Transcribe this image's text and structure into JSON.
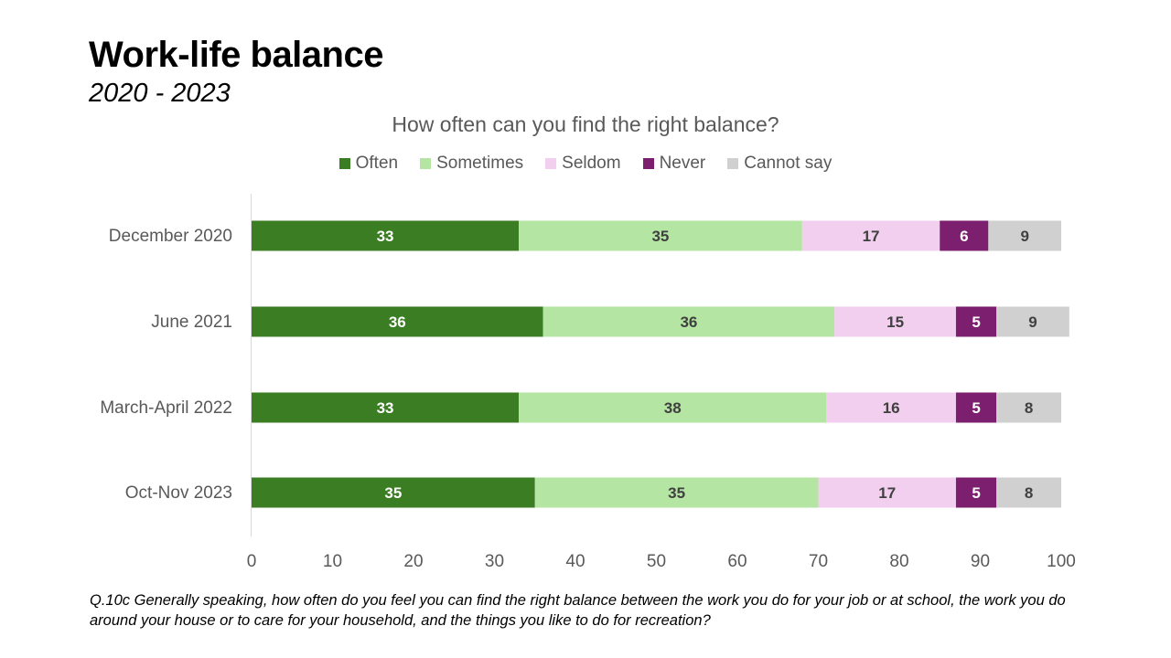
{
  "header": {
    "title": "Work-life balance",
    "subtitle": "2020 - 2023"
  },
  "footnote": "Q.10c Generally speaking, how often do you feel you can find the right balance between the work you do for your job or at school, the work you do around your house or to care for your household, and the things you like to do for recreation?",
  "chart_data": {
    "type": "bar",
    "orientation": "horizontal",
    "stacked": true,
    "title": "How often can you find the right balance?",
    "categories": [
      "December 2020",
      "June 2021",
      "March-April 2022",
      "Oct-Nov 2023"
    ],
    "series": [
      {
        "name": "Often",
        "color": "#3a7d22",
        "label_color": "#ffffff",
        "values": [
          33,
          36,
          33,
          35
        ]
      },
      {
        "name": "Sometimes",
        "color": "#b4e5a2",
        "label_color": "#404040",
        "values": [
          35,
          36,
          38,
          35
        ]
      },
      {
        "name": "Seldom",
        "color": "#f2cfee",
        "label_color": "#404040",
        "values": [
          17,
          15,
          16,
          17
        ]
      },
      {
        "name": "Never",
        "color": "#7b1f6e",
        "label_color": "#ffffff",
        "values": [
          6,
          5,
          5,
          5
        ]
      },
      {
        "name": "Cannot say",
        "color": "#d0d0d0",
        "label_color": "#404040",
        "values": [
          9,
          9,
          8,
          8
        ]
      }
    ],
    "xlim": [
      0,
      100
    ],
    "xticks": [
      0,
      10,
      20,
      30,
      40,
      50,
      60,
      70,
      80,
      90,
      100
    ],
    "legend_position": "top",
    "grid": false,
    "data_labels": true
  }
}
